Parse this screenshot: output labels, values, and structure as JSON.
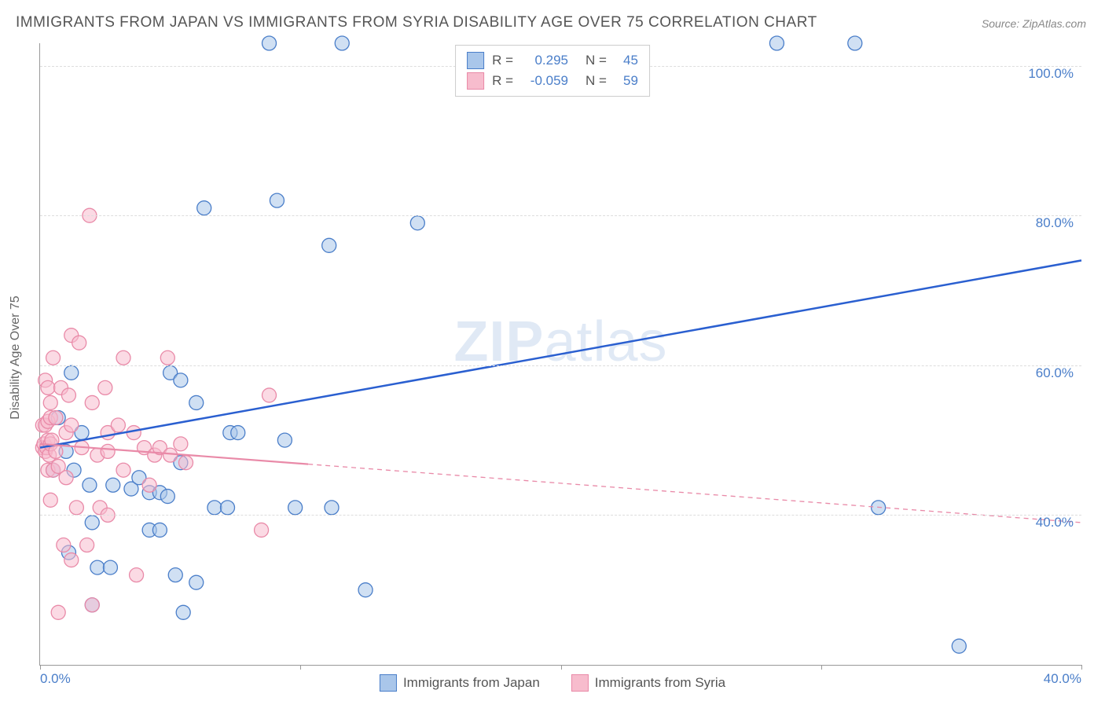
{
  "title": "IMMIGRANTS FROM JAPAN VS IMMIGRANTS FROM SYRIA DISABILITY AGE OVER 75 CORRELATION CHART",
  "source": "Source: ZipAtlas.com",
  "watermark": "ZIPatlas",
  "chart": {
    "type": "scatter",
    "y_axis_title": "Disability Age Over 75",
    "xlim": [
      0,
      40
    ],
    "ylim": [
      20,
      103
    ],
    "x_ticks": [
      0,
      10,
      20,
      30,
      40
    ],
    "x_tick_labels": [
      "0.0%",
      "",
      "",
      "",
      "40.0%"
    ],
    "y_ticks": [
      40,
      60,
      80,
      100
    ],
    "y_tick_labels": [
      "40.0%",
      "60.0%",
      "80.0%",
      "100.0%"
    ],
    "background_color": "#ffffff",
    "grid_color": "#dddddd",
    "marker_radius": 9,
    "marker_opacity": 0.55,
    "series": [
      {
        "name": "Immigrants from Japan",
        "fill_color": "#a9c6ea",
        "stroke_color": "#4a7ec9",
        "R": "0.295",
        "N": "45",
        "trend": {
          "x1": 0,
          "y1": 49,
          "x2": 40,
          "y2": 74,
          "stroke": "#2a5fd0",
          "width": 2.5,
          "solid_until_x": 40
        },
        "points": [
          [
            8.8,
            103
          ],
          [
            11.6,
            103
          ],
          [
            28.3,
            103
          ],
          [
            31.3,
            103
          ],
          [
            6.3,
            81
          ],
          [
            9.1,
            82
          ],
          [
            14.5,
            79
          ],
          [
            11.1,
            76
          ],
          [
            1.2,
            59
          ],
          [
            5.0,
            59
          ],
          [
            5.4,
            58
          ],
          [
            6.0,
            55
          ],
          [
            0.7,
            53
          ],
          [
            1.6,
            51
          ],
          [
            7.3,
            51
          ],
          [
            7.6,
            51
          ],
          [
            9.4,
            50
          ],
          [
            1.0,
            48.5
          ],
          [
            0.5,
            46
          ],
          [
            1.3,
            46
          ],
          [
            5.4,
            47
          ],
          [
            1.9,
            44
          ],
          [
            2.8,
            44
          ],
          [
            3.5,
            43.5
          ],
          [
            3.8,
            45
          ],
          [
            4.2,
            43
          ],
          [
            4.6,
            43
          ],
          [
            4.9,
            42.5
          ],
          [
            6.7,
            41
          ],
          [
            7.2,
            41
          ],
          [
            9.8,
            41
          ],
          [
            11.2,
            41
          ],
          [
            32.2,
            41
          ],
          [
            2.0,
            39
          ],
          [
            4.2,
            38
          ],
          [
            4.6,
            38
          ],
          [
            1.1,
            35
          ],
          [
            2.2,
            33
          ],
          [
            2.7,
            33
          ],
          [
            5.2,
            32
          ],
          [
            6.0,
            31
          ],
          [
            12.5,
            30
          ],
          [
            2.0,
            28
          ],
          [
            5.5,
            27
          ],
          [
            35.3,
            22.5
          ]
        ]
      },
      {
        "name": "Immigrants from Syria",
        "fill_color": "#f7bccd",
        "stroke_color": "#e98aa8",
        "R": "-0.059",
        "N": "59",
        "trend": {
          "x1": 0,
          "y1": 49.5,
          "x2": 40,
          "y2": 39,
          "stroke": "#e98aa8",
          "width": 2.2,
          "solid_until_x": 10.3
        },
        "points": [
          [
            1.9,
            80
          ],
          [
            1.2,
            64
          ],
          [
            1.5,
            63
          ],
          [
            0.5,
            61
          ],
          [
            3.2,
            61
          ],
          [
            4.9,
            61
          ],
          [
            0.2,
            58
          ],
          [
            0.3,
            57
          ],
          [
            0.8,
            57
          ],
          [
            2.5,
            57
          ],
          [
            0.4,
            55
          ],
          [
            1.1,
            56
          ],
          [
            2.0,
            55
          ],
          [
            8.8,
            56
          ],
          [
            0.1,
            52
          ],
          [
            0.2,
            52
          ],
          [
            0.3,
            52.5
          ],
          [
            0.4,
            53
          ],
          [
            0.6,
            53
          ],
          [
            1.0,
            51
          ],
          [
            1.2,
            52
          ],
          [
            2.6,
            51
          ],
          [
            3.0,
            52
          ],
          [
            3.6,
            51
          ],
          [
            0.1,
            49
          ],
          [
            0.15,
            49.5
          ],
          [
            0.2,
            48.5
          ],
          [
            0.25,
            49
          ],
          [
            0.3,
            50
          ],
          [
            0.35,
            48
          ],
          [
            0.4,
            49.5
          ],
          [
            0.45,
            50
          ],
          [
            0.6,
            48.5
          ],
          [
            1.6,
            49
          ],
          [
            2.2,
            48
          ],
          [
            2.6,
            48.5
          ],
          [
            4.0,
            49
          ],
          [
            4.4,
            48
          ],
          [
            4.6,
            49
          ],
          [
            5.0,
            48
          ],
          [
            5.4,
            49.5
          ],
          [
            5.6,
            47
          ],
          [
            0.3,
            46
          ],
          [
            0.5,
            46
          ],
          [
            0.7,
            46.5
          ],
          [
            1.0,
            45
          ],
          [
            3.2,
            46
          ],
          [
            4.2,
            44
          ],
          [
            0.4,
            42
          ],
          [
            1.4,
            41
          ],
          [
            2.3,
            41
          ],
          [
            2.6,
            40
          ],
          [
            8.5,
            38
          ],
          [
            0.9,
            36
          ],
          [
            1.8,
            36
          ],
          [
            1.2,
            34
          ],
          [
            3.7,
            32
          ],
          [
            2.0,
            28
          ],
          [
            0.7,
            27
          ]
        ]
      }
    ],
    "legend_top": [
      {
        "swatch_fill": "#a9c6ea",
        "swatch_border": "#4a7ec9",
        "r_label": "R =",
        "r": "0.295",
        "n_label": "N =",
        "n": "45"
      },
      {
        "swatch_fill": "#f7bccd",
        "swatch_border": "#e98aa8",
        "r_label": "R =",
        "r": "-0.059",
        "n_label": "N =",
        "n": "59"
      }
    ],
    "legend_bottom": [
      {
        "swatch_fill": "#a9c6ea",
        "swatch_border": "#4a7ec9",
        "label": "Immigrants from Japan"
      },
      {
        "swatch_fill": "#f7bccd",
        "swatch_border": "#e98aa8",
        "label": "Immigrants from Syria"
      }
    ]
  }
}
